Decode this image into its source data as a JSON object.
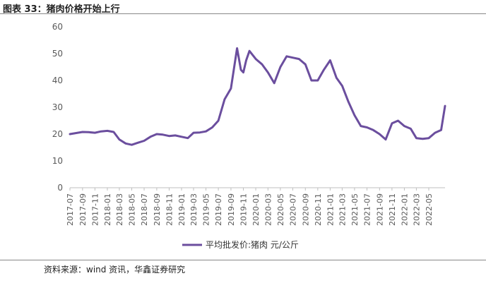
{
  "figure": {
    "title": "图表 33：猪肉价格开始上行"
  },
  "source_note": "资料来源：wind 资讯，华鑫证券研究",
  "colors": {
    "line": "#6B4E9E",
    "axis": "#BFBFBF"
  },
  "chart_data": {
    "type": "line",
    "title": "",
    "xlabel": "",
    "ylabel": "",
    "ylim": [
      0,
      60
    ],
    "yticks": [
      "0",
      "10",
      "20",
      "30",
      "40",
      "50",
      "60"
    ],
    "xticks": [
      "2017-07",
      "2017-09",
      "2017-11",
      "2018-01",
      "2018-03",
      "2018-05",
      "2018-07",
      "2018-09",
      "2018-11",
      "2019-01",
      "2019-03",
      "2019-05",
      "2019-07",
      "2019-09",
      "2019-11",
      "2020-01",
      "2020-03",
      "2020-05",
      "2020-07",
      "2020-09",
      "2020-11",
      "2021-01",
      "2021-03",
      "2021-05",
      "2021-07",
      "2021-09",
      "2021-11",
      "2022-01",
      "2022-03",
      "2022-05"
    ],
    "legend": {
      "position": "bottom"
    },
    "grid": false,
    "series": [
      {
        "name": "平均批发价:猪肉 元/公斤",
        "x": [
          "2017-07",
          "2017-08",
          "2017-09",
          "2017-10",
          "2017-11",
          "2017-12",
          "2018-01",
          "2018-02",
          "2018-03",
          "2018-04",
          "2018-05",
          "2018-06",
          "2018-07",
          "2018-08",
          "2018-09",
          "2018-10",
          "2018-11",
          "2018-12",
          "2019-01",
          "2019-02",
          "2019-03",
          "2019-04",
          "2019-05",
          "2019-06",
          "2019-07",
          "2019-08",
          "2019-09",
          "2019-10",
          "2019-10-20",
          "2019-11",
          "2019-11-15",
          "2019-12",
          "2020-01",
          "2020-02",
          "2020-03",
          "2020-04",
          "2020-05",
          "2020-06",
          "2020-07",
          "2020-08",
          "2020-09",
          "2020-10",
          "2020-11",
          "2020-12",
          "2021-01",
          "2021-02",
          "2021-03",
          "2021-04",
          "2021-05",
          "2021-06",
          "2021-07",
          "2021-08",
          "2021-09",
          "2021-10",
          "2021-11",
          "2021-12",
          "2022-01",
          "2022-02",
          "2022-03",
          "2022-04",
          "2022-05",
          "2022-06",
          "2022-07",
          "2022-07-20"
        ],
        "values": [
          20.0,
          20.4,
          20.8,
          20.7,
          20.5,
          21.0,
          21.2,
          20.8,
          18.0,
          16.5,
          16.0,
          16.8,
          17.5,
          19.0,
          20.0,
          19.8,
          19.3,
          19.5,
          19.0,
          18.5,
          20.5,
          20.6,
          21.0,
          22.5,
          25.0,
          33.0,
          37.0,
          52.0,
          44.0,
          43.0,
          47.5,
          51.0,
          48.0,
          46.0,
          43.0,
          39.0,
          45.0,
          49.0,
          48.5,
          48.0,
          46.0,
          40.0,
          40.0,
          44.0,
          47.5,
          41.0,
          38.0,
          32.0,
          27.0,
          23.0,
          22.5,
          21.5,
          20.0,
          18.0,
          24.0,
          25.0,
          23.0,
          22.0,
          18.5,
          18.2,
          18.5,
          20.5,
          21.5,
          30.5
        ]
      }
    ]
  }
}
